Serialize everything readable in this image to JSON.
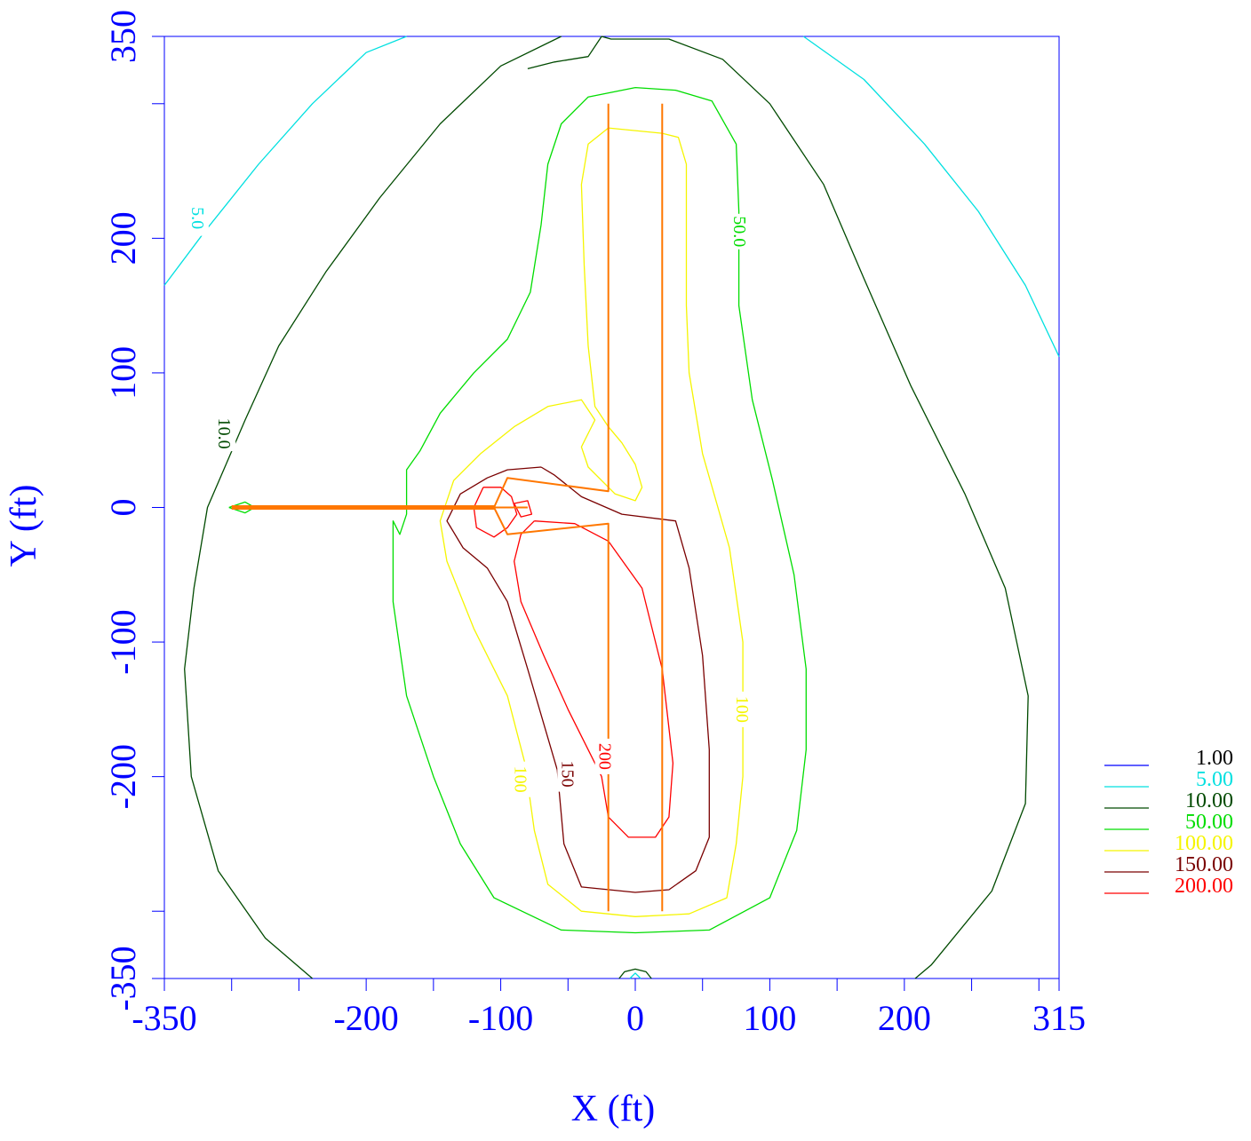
{
  "chart_data": {
    "type": "contour",
    "title": "",
    "xlabel": "X (ft)",
    "ylabel": "Y (ft)",
    "xlim": [
      -350,
      315
    ],
    "ylim": [
      -350,
      350
    ],
    "x_tick_labels": [
      {
        "value": -350,
        "label": "-350"
      },
      {
        "value": -200,
        "label": "-200"
      },
      {
        "value": -100,
        "label": "-100"
      },
      {
        "value": 0,
        "label": "0"
      },
      {
        "value": 100,
        "label": "100"
      },
      {
        "value": 200,
        "label": "200"
      },
      {
        "value": 315,
        "label": "315"
      }
    ],
    "x_minor_ticks": [
      -300,
      -250,
      -150,
      -50,
      50,
      150,
      250,
      300
    ],
    "y_tick_labels": [
      {
        "value": 350,
        "label": "350"
      },
      {
        "value": 200,
        "label": "200"
      },
      {
        "value": 100,
        "label": "100"
      },
      {
        "value": 0,
        "label": "0"
      },
      {
        "value": -100,
        "label": "-100"
      },
      {
        "value": -200,
        "label": "-200"
      },
      {
        "value": -350,
        "label": "-350"
      }
    ],
    "y_minor_ticks": [
      300,
      -300
    ],
    "legend": {
      "position": "right-bottom",
      "entries": [
        {
          "level": 1,
          "label": "1.00",
          "color": "#0000ff",
          "text_color": "#000000"
        },
        {
          "level": 5,
          "label": "5.00",
          "color": "#00e0e0",
          "text_color": "#00e0e0"
        },
        {
          "level": 10,
          "label": "10.00",
          "color": "#004a00",
          "text_color": "#004a00"
        },
        {
          "level": 50,
          "label": "50.00",
          "color": "#00dd00",
          "text_color": "#00dd00"
        },
        {
          "level": 100,
          "label": "100.00",
          "color": "#f5f500",
          "text_color": "#f5f500"
        },
        {
          "level": 150,
          "label": "150.00",
          "color": "#7a0000",
          "text_color": "#7a0000"
        },
        {
          "level": 200,
          "label": "200.00",
          "color": "#ff0000",
          "text_color": "#ff0000"
        }
      ]
    },
    "contours": [
      {
        "level": 5,
        "color": "#00e0e0",
        "label": "5.0",
        "label_at": [
          -325,
          215
        ],
        "points": [
          [
            -350,
            165
          ],
          [
            -320,
            205
          ],
          [
            -280,
            255
          ],
          [
            -240,
            300
          ],
          [
            -200,
            338
          ],
          [
            -170,
            350
          ]
        ]
      },
      {
        "level": 5,
        "color": "#00e0e0",
        "label": "",
        "points": [
          [
            125,
            350
          ],
          [
            170,
            318
          ],
          [
            215,
            270
          ],
          [
            255,
            220
          ],
          [
            290,
            165
          ],
          [
            315,
            112
          ]
        ]
      },
      {
        "level": 5,
        "color": "#00e0e0",
        "label": "",
        "points": [
          [
            -4,
            -350
          ],
          [
            0,
            -346
          ],
          [
            4,
            -350
          ]
        ]
      },
      {
        "level": 10,
        "color": "#004a00",
        "label": "10.0",
        "label_at": [
          -305,
          55
        ],
        "points": [
          [
            -55,
            350
          ],
          [
            -100,
            328
          ],
          [
            -145,
            285
          ],
          [
            -190,
            230
          ],
          [
            -230,
            175
          ],
          [
            -265,
            120
          ],
          [
            -290,
            65
          ],
          [
            -305,
            30
          ],
          [
            -318,
            0
          ],
          [
            -328,
            -60
          ],
          [
            -335,
            -120
          ],
          [
            -330,
            -200
          ],
          [
            -310,
            -270
          ],
          [
            -275,
            -320
          ],
          [
            -240,
            -350
          ]
        ]
      },
      {
        "level": 10,
        "color": "#004a00",
        "label": "",
        "points": [
          [
            -25,
            350
          ],
          [
            -35,
            335
          ],
          [
            -60,
            331
          ],
          [
            -80,
            326
          ]
        ]
      },
      {
        "level": 10,
        "color": "#004a00",
        "label": "",
        "points": [
          [
            -25,
            350
          ],
          [
            -18,
            348
          ],
          [
            25,
            348
          ],
          [
            65,
            333
          ],
          [
            100,
            300
          ],
          [
            140,
            240
          ],
          [
            170,
            170
          ],
          [
            205,
            90
          ],
          [
            245,
            10
          ],
          [
            275,
            -60
          ],
          [
            292,
            -140
          ],
          [
            290,
            -220
          ],
          [
            265,
            -285
          ],
          [
            220,
            -340
          ],
          [
            208,
            -350
          ]
        ]
      },
      {
        "level": 10,
        "color": "#004a00",
        "label": "",
        "points": [
          [
            -12,
            -350
          ],
          [
            -8,
            -345
          ],
          [
            0,
            -343
          ],
          [
            8,
            -345
          ],
          [
            12,
            -350
          ]
        ]
      },
      {
        "level": 50,
        "color": "#00dd00",
        "label": "50.0",
        "label_at": [
          78,
          205
        ],
        "points": [
          [
            0,
            312
          ],
          [
            -35,
            305
          ],
          [
            -55,
            285
          ],
          [
            -65,
            255
          ],
          [
            -70,
            210
          ],
          [
            -78,
            160
          ],
          [
            -95,
            125
          ],
          [
            -120,
            100
          ],
          [
            -145,
            70
          ],
          [
            -160,
            42
          ],
          [
            -170,
            28
          ],
          [
            -170,
            -5
          ],
          [
            -175,
            -20
          ],
          [
            -180,
            -10
          ],
          [
            -180,
            -70
          ],
          [
            -170,
            -140
          ],
          [
            -150,
            -200
          ],
          [
            -130,
            -250
          ],
          [
            -105,
            -290
          ],
          [
            -55,
            -314
          ],
          [
            0,
            -316
          ],
          [
            55,
            -314
          ],
          [
            100,
            -290
          ],
          [
            120,
            -240
          ],
          [
            127,
            -180
          ],
          [
            127,
            -120
          ],
          [
            118,
            -50
          ],
          [
            102,
            20
          ],
          [
            87,
            80
          ],
          [
            77,
            150
          ],
          [
            77,
            220
          ],
          [
            75,
            270
          ],
          [
            57,
            302
          ],
          [
            30,
            310
          ],
          [
            0,
            312
          ]
        ]
      },
      {
        "level": 50,
        "color": "#00dd00",
        "label": "",
        "points": [
          [
            -302,
            0
          ],
          [
            -290,
            4
          ],
          [
            -283,
            0
          ],
          [
            -290,
            -4
          ],
          [
            -302,
            0
          ]
        ]
      },
      {
        "level": 100,
        "color": "#f5f500",
        "label": "100",
        "label_at": [
          80,
          -150
        ],
        "points": [
          [
            20,
            278
          ],
          [
            -20,
            282
          ],
          [
            -35,
            270
          ],
          [
            -40,
            240
          ],
          [
            -38,
            180
          ],
          [
            -35,
            120
          ],
          [
            -30,
            75
          ],
          [
            -20,
            60
          ],
          [
            -10,
            48
          ],
          [
            0,
            32
          ],
          [
            5,
            15
          ],
          [
            0,
            5
          ],
          [
            -15,
            10
          ],
          [
            -35,
            30
          ],
          [
            -40,
            45
          ],
          [
            -30,
            65
          ],
          [
            -40,
            80
          ],
          [
            -65,
            75
          ],
          [
            -90,
            60
          ],
          [
            -115,
            40
          ],
          [
            -135,
            20
          ],
          [
            -145,
            -10
          ],
          [
            -140,
            -40
          ],
          [
            -120,
            -90
          ],
          [
            -95,
            -140
          ],
          [
            -82,
            -190
          ],
          [
            -75,
            -240
          ],
          [
            -65,
            -280
          ],
          [
            -40,
            -300
          ],
          [
            0,
            -304
          ],
          [
            40,
            -302
          ],
          [
            68,
            -290
          ],
          [
            75,
            -250
          ],
          [
            80,
            -200
          ],
          [
            80,
            -100
          ],
          [
            70,
            -30
          ],
          [
            50,
            40
          ],
          [
            40,
            100
          ],
          [
            38,
            150
          ],
          [
            38,
            215
          ],
          [
            38,
            255
          ],
          [
            32,
            275
          ],
          [
            20,
            278
          ]
        ]
      },
      {
        "level": 100,
        "color": "#f5f500",
        "label": "100",
        "label_at": [
          -85,
          -202
        ],
        "points": []
      },
      {
        "level": 150,
        "color": "#7a0000",
        "label": "150",
        "label_at": [
          -50,
          -198
        ],
        "points": [
          [
            -70,
            30
          ],
          [
            -95,
            28
          ],
          [
            -110,
            22
          ],
          [
            -130,
            10
          ],
          [
            -140,
            -10
          ],
          [
            -128,
            -30
          ],
          [
            -110,
            -45
          ],
          [
            -95,
            -70
          ],
          [
            -80,
            -120
          ],
          [
            -58,
            -195
          ],
          [
            -53,
            -250
          ],
          [
            -40,
            -282
          ],
          [
            0,
            -286
          ],
          [
            25,
            -284
          ],
          [
            45,
            -270
          ],
          [
            55,
            -245
          ],
          [
            55,
            -180
          ],
          [
            50,
            -110
          ],
          [
            40,
            -45
          ],
          [
            30,
            -10
          ],
          [
            -10,
            -5
          ],
          [
            -40,
            8
          ],
          [
            -60,
            24
          ],
          [
            -70,
            30
          ]
        ]
      },
      {
        "level": 200,
        "color": "#ff0000",
        "label": "200",
        "label_at": [
          -22,
          -185
        ],
        "points": [
          [
            -113,
            15
          ],
          [
            -120,
            0
          ],
          [
            -118,
            -15
          ],
          [
            -105,
            -22
          ],
          [
            -95,
            -15
          ],
          [
            -88,
            -5
          ],
          [
            -92,
            8
          ],
          [
            -100,
            15
          ],
          [
            -113,
            15
          ]
        ]
      },
      {
        "level": 200,
        "color": "#ff0000",
        "label": "",
        "points": [
          [
            -75,
            -10
          ],
          [
            -85,
            -20
          ],
          [
            -90,
            -40
          ],
          [
            -85,
            -70
          ],
          [
            -68,
            -110
          ],
          [
            -50,
            -150
          ],
          [
            -25,
            -200
          ],
          [
            -20,
            -230
          ],
          [
            -5,
            -245
          ],
          [
            15,
            -245
          ],
          [
            25,
            -230
          ],
          [
            28,
            -190
          ],
          [
            20,
            -120
          ],
          [
            5,
            -60
          ],
          [
            -20,
            -25
          ],
          [
            -45,
            -12
          ],
          [
            -75,
            -10
          ]
        ]
      },
      {
        "level": 200,
        "color": "#ff0000",
        "label": "",
        "points": [
          [
            -90,
            3
          ],
          [
            -80,
            5
          ],
          [
            -77,
            -5
          ],
          [
            -85,
            -7
          ],
          [
            -90,
            3
          ]
        ]
      }
    ],
    "sources": [
      {
        "color": "#ff7700",
        "width": 2,
        "points": [
          [
            -20,
            300
          ],
          [
            -20,
            12
          ],
          [
            -95,
            22
          ],
          [
            -105,
            0
          ],
          [
            -95,
            -20
          ],
          [
            -20,
            -12
          ],
          [
            -20,
            -300
          ]
        ]
      },
      {
        "color": "#ff7700",
        "width": 2,
        "points": [
          [
            20,
            300
          ],
          [
            20,
            -300
          ]
        ]
      },
      {
        "color": "#ff7700",
        "width": 2,
        "points": [
          [
            -105,
            0
          ],
          [
            -80,
            0
          ]
        ]
      },
      {
        "color": "#ff7700",
        "width": 5,
        "points": [
          [
            -300,
            0
          ],
          [
            -105,
            0
          ]
        ]
      }
    ]
  }
}
